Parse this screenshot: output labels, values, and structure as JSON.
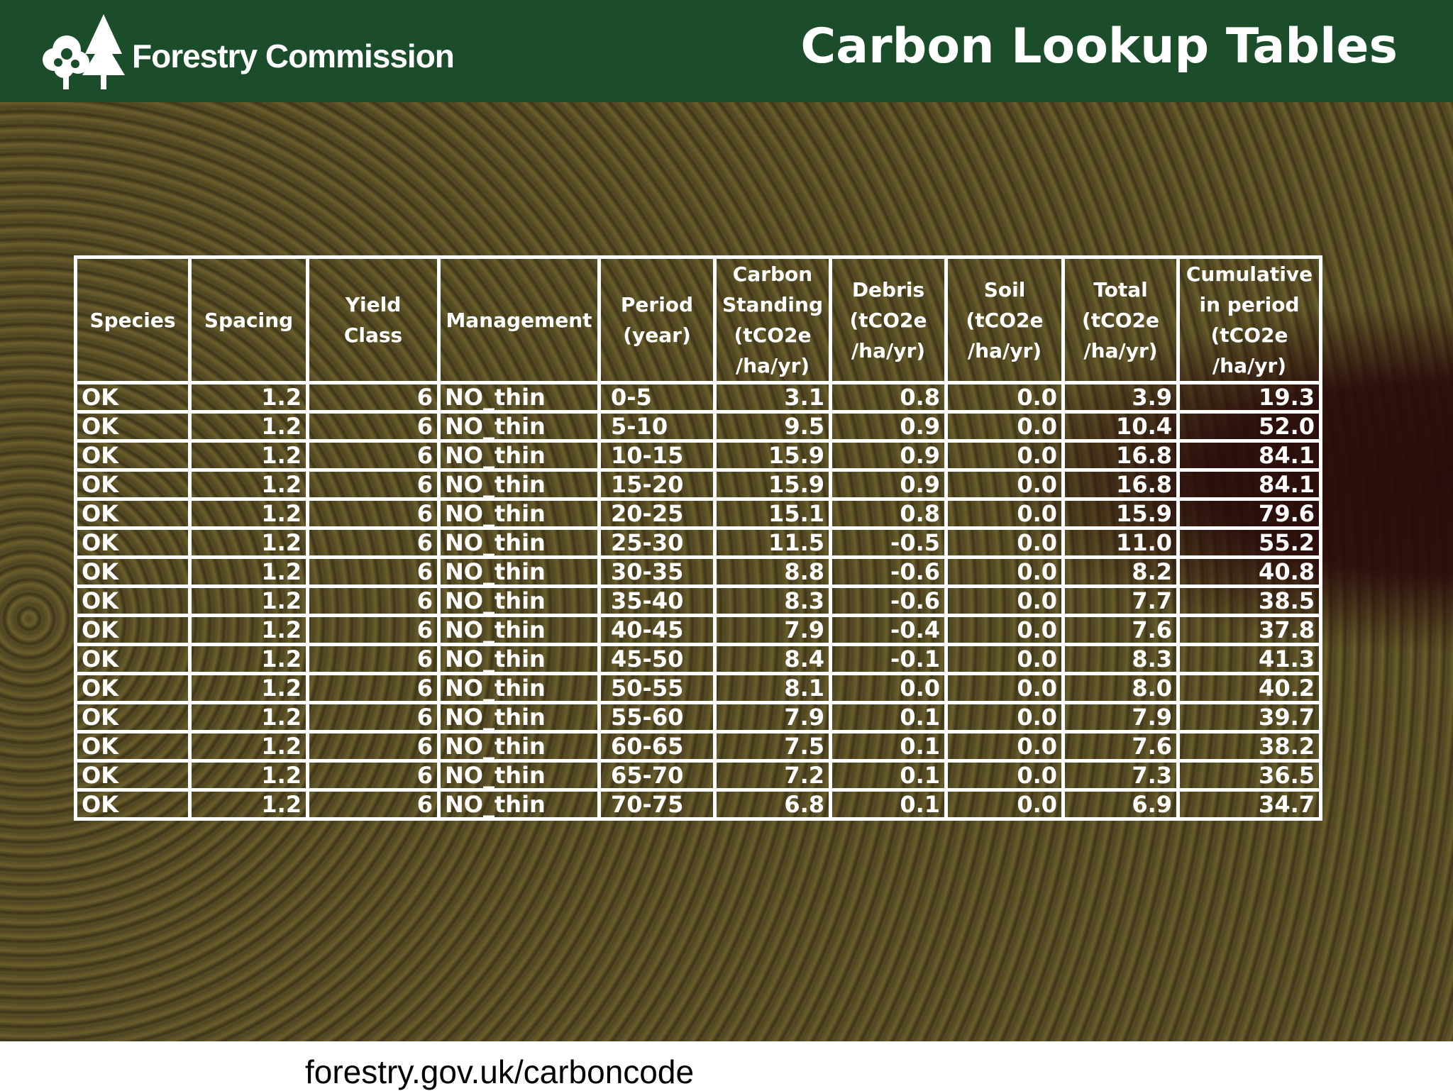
{
  "header": {
    "brand": "Forestry Commission",
    "title": "Carbon Lookup Tables"
  },
  "table": {
    "columns": [
      [
        "Species"
      ],
      [
        "Spacing"
      ],
      [
        "Yield",
        "Class"
      ],
      [
        "Management"
      ],
      [
        "Period",
        "(year)"
      ],
      [
        "Carbon",
        "Standing",
        "(tCO2e",
        "/ha/yr)"
      ],
      [
        "Debris",
        "(tCO2e",
        "/ha/yr)"
      ],
      [
        "Soil",
        "(tCO2e",
        "/ha/yr)"
      ],
      [
        "Total",
        "(tCO2e",
        "/ha/yr)"
      ],
      [
        "Cumulative",
        "in period",
        "(tCO2e",
        "/ha/yr)"
      ]
    ],
    "rows": [
      [
        "OK",
        "1.2",
        "6",
        "NO_thin",
        "0-5",
        "3.1",
        "0.8",
        "0.0",
        "3.9",
        "19.3"
      ],
      [
        "OK",
        "1.2",
        "6",
        "NO_thin",
        "5-10",
        "9.5",
        "0.9",
        "0.0",
        "10.4",
        "52.0"
      ],
      [
        "OK",
        "1.2",
        "6",
        "NO_thin",
        "10-15",
        "15.9",
        "0.9",
        "0.0",
        "16.8",
        "84.1"
      ],
      [
        "OK",
        "1.2",
        "6",
        "NO_thin",
        "15-20",
        "15.9",
        "0.9",
        "0.0",
        "16.8",
        "84.1"
      ],
      [
        "OK",
        "1.2",
        "6",
        "NO_thin",
        "20-25",
        "15.1",
        "0.8",
        "0.0",
        "15.9",
        "79.6"
      ],
      [
        "OK",
        "1.2",
        "6",
        "NO_thin",
        "25-30",
        "11.5",
        "-0.5",
        "0.0",
        "11.0",
        "55.2"
      ],
      [
        "OK",
        "1.2",
        "6",
        "NO_thin",
        "30-35",
        "8.8",
        "-0.6",
        "0.0",
        "8.2",
        "40.8"
      ],
      [
        "OK",
        "1.2",
        "6",
        "NO_thin",
        "35-40",
        "8.3",
        "-0.6",
        "0.0",
        "7.7",
        "38.5"
      ],
      [
        "OK",
        "1.2",
        "6",
        "NO_thin",
        "40-45",
        "7.9",
        "-0.4",
        "0.0",
        "7.6",
        "37.8"
      ],
      [
        "OK",
        "1.2",
        "6",
        "NO_thin",
        "45-50",
        "8.4",
        "-0.1",
        "0.0",
        "8.3",
        "41.3"
      ],
      [
        "OK",
        "1.2",
        "6",
        "NO_thin",
        "50-55",
        "8.1",
        "0.0",
        "0.0",
        "8.0",
        "40.2"
      ],
      [
        "OK",
        "1.2",
        "6",
        "NO_thin",
        "55-60",
        "7.9",
        "0.1",
        "0.0",
        "7.9",
        "39.7"
      ],
      [
        "OK",
        "1.2",
        "6",
        "NO_thin",
        "60-65",
        "7.5",
        "0.1",
        "0.0",
        "7.6",
        "38.2"
      ],
      [
        "OK",
        "1.2",
        "6",
        "NO_thin",
        "65-70",
        "7.2",
        "0.1",
        "0.0",
        "7.3",
        "36.5"
      ],
      [
        "OK",
        "1.2",
        "6",
        "NO_thin",
        "70-75",
        "6.8",
        "0.1",
        "0.0",
        "6.9",
        "34.7"
      ]
    ]
  },
  "footer": {
    "url": "forestry.gov.uk/carboncode"
  }
}
